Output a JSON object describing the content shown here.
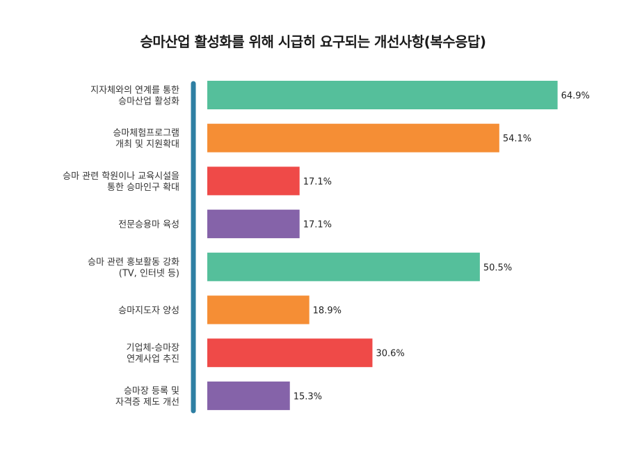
{
  "chart_data": {
    "type": "bar",
    "orientation": "horizontal",
    "title": "승마산업 활성화를 위해 시급히 요구되는 개선사항(복수응답)",
    "categories": [
      [
        "지자체와의 연계를 통한",
        "승마산업 활성화"
      ],
      [
        "승마체험프로그램",
        "개최 및 지원확대"
      ],
      [
        "승마 관련 학원이나 교육시설을",
        "통한 승마인구 확대"
      ],
      [
        "전문승용마 육성"
      ],
      [
        "승마 관련 홍보활동 강화",
        "(TV, 인터넷 등)"
      ],
      [
        "승마지도자 양성"
      ],
      [
        "기업체-승마장",
        "연계사업 추진"
      ],
      [
        "승마장 등록 및",
        "자격증 제도 개선"
      ]
    ],
    "values": [
      64.9,
      54.1,
      17.1,
      17.1,
      50.5,
      18.9,
      30.6,
      15.3
    ],
    "value_labels": [
      "64.9%",
      "54.1%",
      "17.1%",
      "17.1%",
      "50.5%",
      "18.9%",
      "30.6%",
      "15.3%"
    ],
    "colors": [
      "#55bf9b",
      "#f58e35",
      "#ef4a48",
      "#8563a9",
      "#55bf9b",
      "#f58e35",
      "#ef4a48",
      "#8563a9"
    ],
    "axis_line_color": "#2e7fa3",
    "xlim": [
      0,
      100
    ],
    "grid": false,
    "legend": "none"
  }
}
